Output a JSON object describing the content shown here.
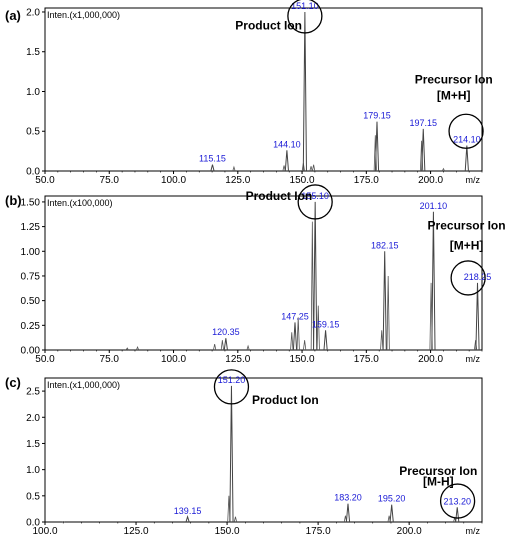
{
  "chart_data": [
    {
      "type": "line",
      "panel_label": "(a)",
      "ylabel": "Inten.(x1,000,000)",
      "xlabel": "m/z",
      "xlim": [
        50,
        220
      ],
      "xticks": [
        "50.0",
        "75.0",
        "100.0",
        "125.0",
        "150.0",
        "175.0",
        "200.0"
      ],
      "ylim": [
        0,
        2.05
      ],
      "yticks": [
        "0.0",
        "0.5",
        "1.0",
        "1.5",
        "2.0"
      ],
      "peaks": [
        {
          "mz": 115.15,
          "y": 0.08,
          "label": "115.15"
        },
        {
          "mz": 144.1,
          "y": 0.26,
          "label": "144.10"
        },
        {
          "mz": 151.1,
          "y": 2.0,
          "label": "151.10"
        },
        {
          "mz": 179.15,
          "y": 0.62,
          "label": "179.15"
        },
        {
          "mz": 197.15,
          "y": 0.53,
          "label": "197.15"
        },
        {
          "mz": 214.1,
          "y": 0.32,
          "label": "214.10"
        }
      ],
      "minor_peaks": [
        {
          "mz": 123.5,
          "y": 0.05
        },
        {
          "mz": 143.0,
          "y": 0.07
        },
        {
          "mz": 150.5,
          "y": 0.1
        },
        {
          "mz": 153.5,
          "y": 0.06
        },
        {
          "mz": 154.5,
          "y": 0.08
        },
        {
          "mz": 178.5,
          "y": 0.45
        },
        {
          "mz": 196.5,
          "y": 0.38
        },
        {
          "mz": 205.0,
          "y": 0.03
        }
      ],
      "annotations": [
        {
          "text": "Product Ion",
          "mz": 137,
          "y": 1.78
        },
        {
          "text": "Precursor Ion",
          "mz": 209,
          "y": 1.1
        },
        {
          "text": "[M+H]",
          "mz": 209,
          "y": 0.9
        }
      ],
      "circles": [
        {
          "mz": 151.1,
          "y": 1.95,
          "r": 17
        },
        {
          "mz": 213.8,
          "y": 0.5,
          "r": 17
        }
      ]
    },
    {
      "type": "line",
      "panel_label": "(b)",
      "ylabel": "Inten.(x100,000)",
      "xlabel": "m/z",
      "xlim": [
        50,
        220
      ],
      "xticks": [
        "50.0",
        "75.0",
        "100.0",
        "125.0",
        "150.0",
        "175.0",
        "200.0"
      ],
      "ylim": [
        0,
        1.56
      ],
      "yticks": [
        "0.00",
        "0.25",
        "0.50",
        "0.75",
        "1.00",
        "1.25",
        "1.50"
      ],
      "peaks": [
        {
          "mz": 120.35,
          "y": 0.12,
          "label": "120.35"
        },
        {
          "mz": 147.25,
          "y": 0.28,
          "label": "147.25"
        },
        {
          "mz": 155.1,
          "y": 1.5,
          "label": "155.10"
        },
        {
          "mz": 159.15,
          "y": 0.2,
          "label": "159.15"
        },
        {
          "mz": 182.15,
          "y": 1.0,
          "label": "182.15"
        },
        {
          "mz": 201.1,
          "y": 1.4,
          "label": "201.10"
        },
        {
          "mz": 218.25,
          "y": 0.68,
          "label": "218.25"
        }
      ],
      "minor_peaks": [
        {
          "mz": 82.0,
          "y": 0.02
        },
        {
          "mz": 86.0,
          "y": 0.03
        },
        {
          "mz": 116.0,
          "y": 0.06
        },
        {
          "mz": 119.0,
          "y": 0.1
        },
        {
          "mz": 129.0,
          "y": 0.04
        },
        {
          "mz": 146.0,
          "y": 0.18
        },
        {
          "mz": 148.5,
          "y": 0.33
        },
        {
          "mz": 151.0,
          "y": 0.1
        },
        {
          "mz": 154.0,
          "y": 1.3
        },
        {
          "mz": 156.3,
          "y": 0.45
        },
        {
          "mz": 181.0,
          "y": 0.2
        },
        {
          "mz": 183.5,
          "y": 0.75
        },
        {
          "mz": 200.2,
          "y": 0.68
        },
        {
          "mz": 217.5,
          "y": 0.1
        }
      ],
      "annotations": [
        {
          "text": "Product Ion",
          "mz": 141,
          "y": 1.52
        },
        {
          "text": "Precursor Ion",
          "mz": 214,
          "y": 1.22
        },
        {
          "text": "[M+H]",
          "mz": 214,
          "y": 1.02
        }
      ],
      "circles": [
        {
          "mz": 155.1,
          "y": 1.5,
          "r": 17
        },
        {
          "mz": 214.6,
          "y": 0.73,
          "r": 17
        }
      ]
    },
    {
      "type": "line",
      "panel_label": "(c)",
      "ylabel": "Inten.(x1,000,000)",
      "xlabel": "m/z",
      "xlim": [
        100,
        220
      ],
      "xticks": [
        "100.0",
        "125.0",
        "150.0",
        "175.0",
        "200.0"
      ],
      "ylim": [
        0,
        2.75
      ],
      "yticks": [
        "0.0",
        "0.5",
        "1.0",
        "1.5",
        "2.0",
        "2.5"
      ],
      "peaks": [
        {
          "mz": 139.15,
          "y": 0.1,
          "label": "139.15"
        },
        {
          "mz": 151.2,
          "y": 2.6,
          "label": "151.20"
        },
        {
          "mz": 183.2,
          "y": 0.35,
          "label": "183.20"
        },
        {
          "mz": 195.2,
          "y": 0.33,
          "label": "195.20"
        },
        {
          "mz": 213.2,
          "y": 0.28,
          "label": "213.20"
        }
      ],
      "minor_peaks": [
        {
          "mz": 105.0,
          "y": 0.01
        },
        {
          "mz": 150.5,
          "y": 0.5
        },
        {
          "mz": 152.3,
          "y": 0.1
        },
        {
          "mz": 182.5,
          "y": 0.12
        },
        {
          "mz": 194.5,
          "y": 0.12
        },
        {
          "mz": 212.5,
          "y": 0.08
        }
      ],
      "annotations": [
        {
          "text": "Product Ion",
          "mz": 166,
          "y": 2.25
        },
        {
          "text": "Precursor Ion",
          "mz": 208,
          "y": 0.9
        },
        {
          "text": "[M-H]",
          "mz": 208,
          "y": 0.7
        }
      ],
      "circles": [
        {
          "mz": 151.2,
          "y": 2.58,
          "r": 17
        },
        {
          "mz": 213.3,
          "y": 0.4,
          "r": 17
        }
      ]
    }
  ]
}
